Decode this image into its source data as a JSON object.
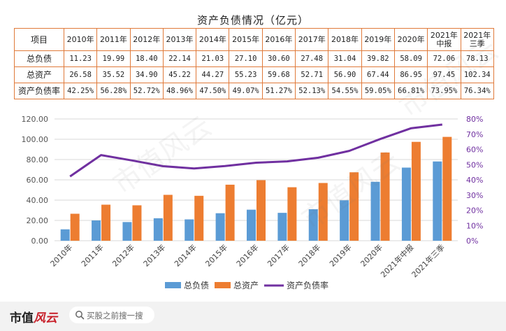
{
  "title": "资产负债情况（亿元）",
  "table": {
    "header": [
      "项目",
      "2010年",
      "2011年",
      "2012年",
      "2013年",
      "2014年",
      "2015年",
      "2016年",
      "2017年",
      "2018年",
      "2019年",
      "2020年",
      "2021年\n中报",
      "2021年\n三季"
    ],
    "rows": [
      [
        "总负债",
        "11.23",
        "19.99",
        "18.40",
        "22.14",
        "21.03",
        "27.10",
        "30.60",
        "27.48",
        "31.04",
        "39.82",
        "58.09",
        "72.06",
        "78.13"
      ],
      [
        "总资产",
        "26.58",
        "35.52",
        "34.90",
        "45.22",
        "44.27",
        "55.23",
        "59.68",
        "52.71",
        "56.90",
        "67.44",
        "86.95",
        "97.45",
        "102.34"
      ],
      [
        "资产负债率",
        "42.25%",
        "56.28%",
        "52.72%",
        "48.96%",
        "47.50%",
        "49.07%",
        "51.27%",
        "52.13%",
        "54.55%",
        "59.05%",
        "66.81%",
        "73.95%",
        "76.34%"
      ]
    ]
  },
  "chart_data": {
    "type": "bar+line",
    "categories": [
      "2010年",
      "2011年",
      "2012年",
      "2013年",
      "2014年",
      "2015年",
      "2016年",
      "2017年",
      "2018年",
      "2019年",
      "2020年",
      "2021年中报",
      "2021年三季"
    ],
    "series": [
      {
        "name": "总负债",
        "type": "bar",
        "axis": "left",
        "color": "#5b9bd5",
        "values": [
          11.23,
          19.99,
          18.4,
          22.14,
          21.03,
          27.1,
          30.6,
          27.48,
          31.04,
          39.82,
          58.09,
          72.06,
          78.13
        ]
      },
      {
        "name": "总资产",
        "type": "bar",
        "axis": "left",
        "color": "#ed7d31",
        "values": [
          26.58,
          35.52,
          34.9,
          45.22,
          44.27,
          55.23,
          59.68,
          52.71,
          56.9,
          67.44,
          86.95,
          97.45,
          102.34
        ]
      },
      {
        "name": "资产负债率",
        "type": "line",
        "axis": "right",
        "color": "#7030a0",
        "values": [
          42.25,
          56.28,
          52.72,
          48.96,
          47.5,
          49.07,
          51.27,
          52.13,
          54.55,
          59.05,
          66.81,
          73.95,
          76.34
        ]
      }
    ],
    "ylim_left": [
      0,
      120
    ],
    "yticks_left": [
      "0.00",
      "20.00",
      "40.00",
      "60.00",
      "80.00",
      "100.00",
      "120.00"
    ],
    "ylim_right": [
      0,
      80
    ],
    "yticks_right": [
      "0%",
      "10%",
      "20%",
      "30%",
      "40%",
      "50%",
      "60%",
      "70%",
      "80%"
    ],
    "legend": "bottom",
    "grid": true
  },
  "footer": {
    "logo_left": "市值",
    "logo_right": "风云",
    "search_placeholder": "买股之前搜一搜"
  },
  "watermark": "市值风云",
  "colors": {
    "table_border": "#e07a3a",
    "bar1": "#5b9bd5",
    "bar2": "#ed7d31",
    "line": "#7030a0",
    "right_axis_text": "#7030a0"
  }
}
